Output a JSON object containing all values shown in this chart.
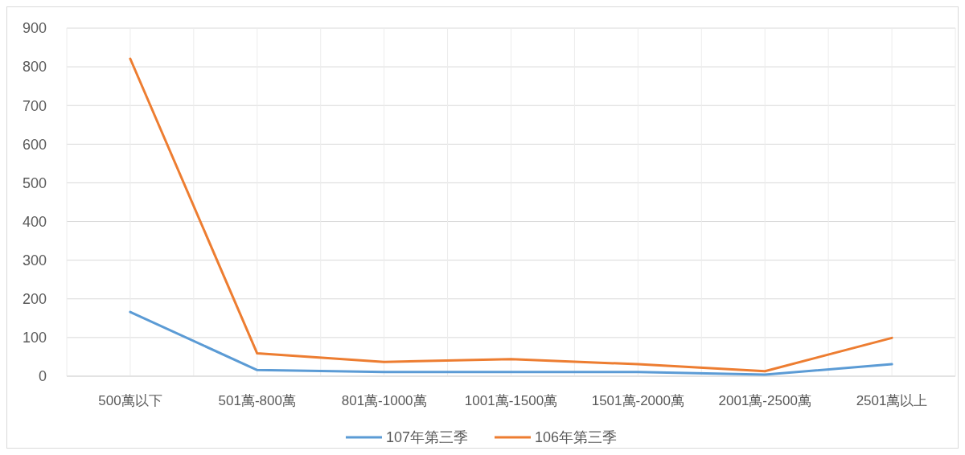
{
  "chart_data": {
    "type": "line",
    "categories": [
      "500萬以下",
      "501萬-800萬",
      "801萬-1000萬",
      "1001萬-1500萬",
      "1501萬-2000萬",
      "2001萬-2500萬",
      "2501萬以上"
    ],
    "series": [
      {
        "name": "107年第三季",
        "color": "#5b9bd5",
        "values": [
          166,
          16,
          11,
          11,
          11,
          4,
          31
        ]
      },
      {
        "name": "106年第三季",
        "color": "#ed7d31",
        "values": [
          821,
          59,
          37,
          44,
          31,
          13,
          99
        ]
      }
    ],
    "ylim": [
      0,
      900
    ],
    "yticks": [
      0,
      100,
      200,
      300,
      400,
      500,
      600,
      700,
      800,
      900
    ],
    "grid": true,
    "legend": "bottom",
    "marker": "none",
    "line_style": "solid"
  }
}
